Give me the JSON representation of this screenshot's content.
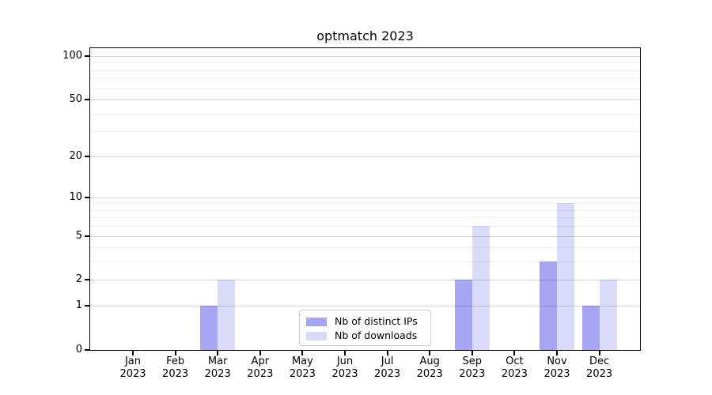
{
  "title": "optmatch 2023",
  "legend": {
    "items": [
      {
        "label": "Nb of distinct IPs",
        "color": "#a6a6f3"
      },
      {
        "label": "Nb of downloads",
        "color": "#dadaf9"
      }
    ]
  },
  "chart_data": {
    "type": "bar",
    "title": "optmatch 2023",
    "categories": [
      "Jan 2023",
      "Feb 2023",
      "Mar 2023",
      "Apr 2023",
      "May 2023",
      "Jun 2023",
      "Jul 2023",
      "Aug 2023",
      "Sep 2023",
      "Oct 2023",
      "Nov 2023",
      "Dec 2023"
    ],
    "x_tick_line1": [
      "Jan",
      "Feb",
      "Mar",
      "Apr",
      "May",
      "Jun",
      "Jul",
      "Aug",
      "Sep",
      "Oct",
      "Nov",
      "Dec"
    ],
    "x_tick_line2": [
      "2023",
      "2023",
      "2023",
      "2023",
      "2023",
      "2023",
      "2023",
      "2023",
      "2023",
      "2023",
      "2023",
      "2023"
    ],
    "series": [
      {
        "name": "Nb of distinct IPs",
        "color": "#a6a6f3",
        "values": [
          0,
          0,
          1,
          0,
          0,
          0,
          0,
          0,
          2,
          0,
          3,
          1
        ]
      },
      {
        "name": "Nb of downloads",
        "color": "#dadaf9",
        "values": [
          0,
          0,
          2,
          0,
          0,
          0,
          0,
          0,
          6,
          0,
          9,
          2
        ]
      }
    ],
    "xlabel": "",
    "ylabel": "",
    "yscale": "log1p",
    "ylim": [
      0,
      113.4
    ],
    "yticks": [
      0,
      1,
      2,
      5,
      10,
      20,
      50,
      100
    ],
    "minor_yticks": [
      3,
      4,
      6,
      7,
      8,
      9,
      30,
      40,
      60,
      70,
      80,
      90
    ],
    "grid": "horizontal-major-and-minor",
    "legend_position": "lower center"
  }
}
